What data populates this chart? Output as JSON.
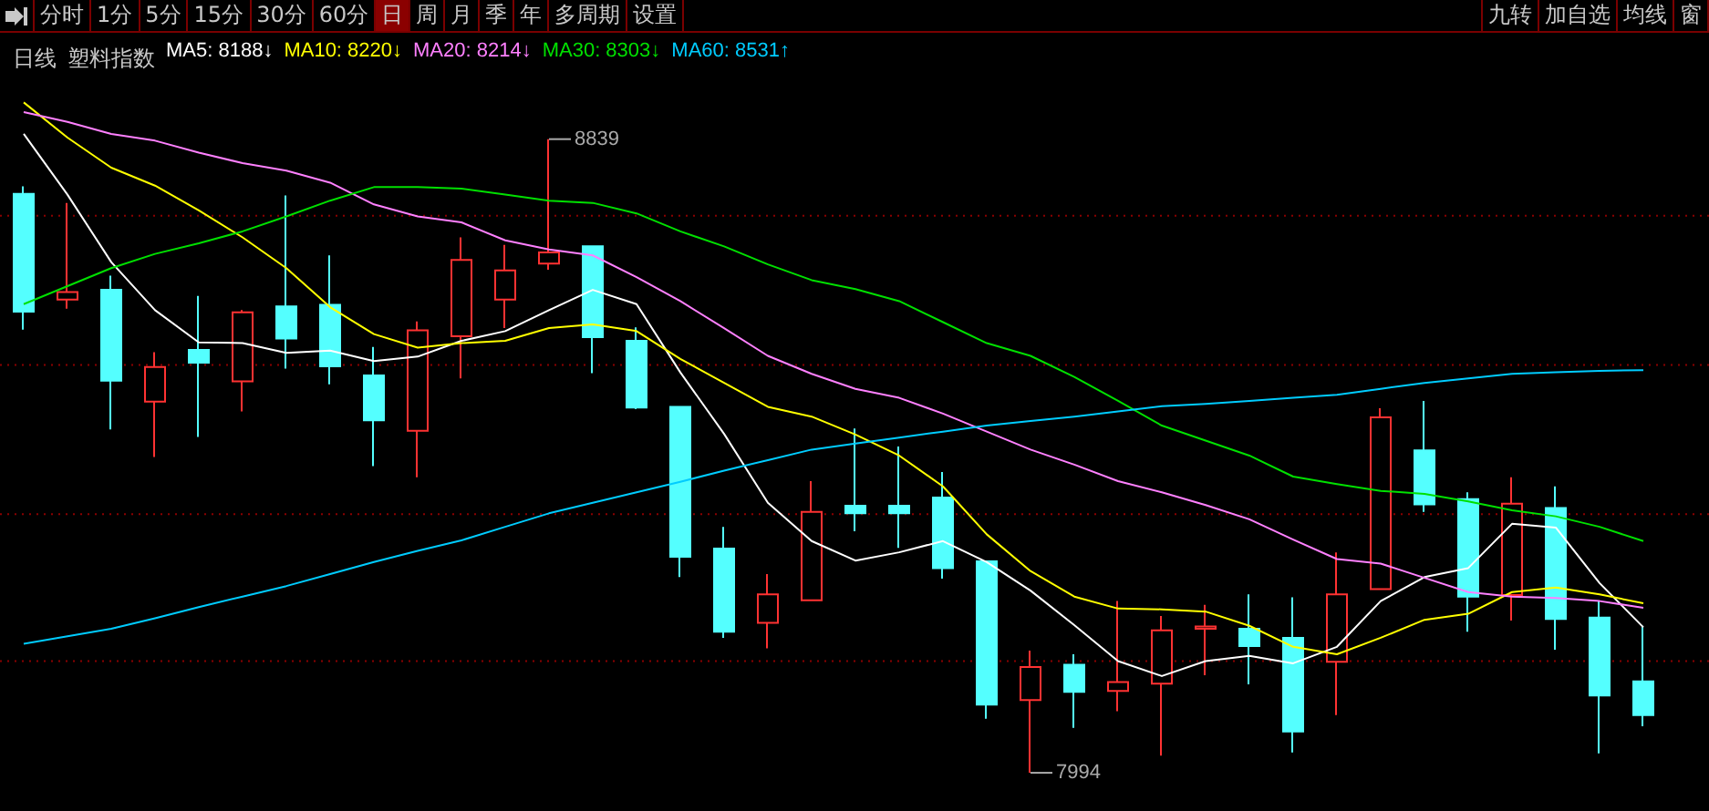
{
  "chart_data": {
    "type": "candlestick",
    "title": "日线",
    "subtitle": "塑料指数",
    "categories": [
      null,
      null,
      null,
      null,
      null,
      null,
      null,
      null,
      null,
      null,
      null,
      null,
      null,
      null,
      null,
      null,
      null,
      null,
      null,
      null,
      null,
      null,
      null,
      null,
      null,
      null,
      null,
      null,
      null,
      null,
      null,
      null,
      null,
      null,
      null,
      null,
      null,
      null
    ],
    "ohlc": [
      [
        8766,
        8776,
        8585,
        8609
      ],
      [
        8625,
        8754,
        8613,
        8635
      ],
      [
        8638,
        8657,
        8452,
        8517
      ],
      [
        8489,
        8555,
        8415,
        8535
      ],
      [
        8558,
        8630,
        8442,
        8541
      ],
      [
        8516,
        8611,
        8476,
        8608
      ],
      [
        8616,
        8764,
        8533,
        8573
      ],
      [
        8618,
        8684,
        8512,
        8536
      ],
      [
        8524,
        8562,
        8403,
        8464
      ],
      [
        8450,
        8596,
        8388,
        8584
      ],
      [
        8576,
        8708,
        8520,
        8678
      ],
      [
        8625,
        8698,
        8587,
        8664
      ],
      [
        8673,
        8839,
        8665,
        8688
      ],
      [
        8696,
        8696,
        8527,
        8575
      ],
      [
        8570,
        8588,
        8479,
        8481
      ],
      [
        8482,
        8482,
        8255,
        8282
      ],
      [
        8293,
        8322,
        8174,
        8182
      ],
      [
        8194,
        8259,
        8160,
        8232
      ],
      [
        8224,
        8383,
        8224,
        8342
      ],
      [
        8350,
        8453,
        8316,
        8340
      ],
      [
        8350,
        8429,
        8294,
        8340
      ],
      [
        8361,
        8395,
        8253,
        8267
      ],
      [
        8276,
        8276,
        8066,
        8085
      ],
      [
        8091,
        8157,
        7994,
        8135
      ],
      [
        8138,
        8152,
        8054,
        8102
      ],
      [
        8103,
        8223,
        8076,
        8115
      ],
      [
        8113,
        8203,
        8017,
        8184
      ],
      [
        8186,
        8218,
        8124,
        8189
      ],
      [
        8186,
        8232,
        8112,
        8163
      ],
      [
        8174,
        8228,
        8021,
        8049
      ],
      [
        8142,
        8288,
        8071,
        8232
      ],
      [
        8239,
        8480,
        8239,
        8468
      ],
      [
        8424,
        8490,
        8342,
        8352
      ],
      [
        8359,
        8368,
        8182,
        8229
      ],
      [
        8231,
        8388,
        8197,
        8353
      ],
      [
        8347,
        8376,
        8158,
        8199
      ],
      [
        8201,
        8223,
        8020,
        8097
      ],
      [
        8116,
        8190,
        8056,
        8071
      ]
    ],
    "colors": [
      "#54ffff",
      "#ff3232",
      "#54ffff",
      "#ff3232",
      "#54ffff",
      "#ff3232",
      "#54ffff",
      "#54ffff",
      "#54ffff",
      "#ff3232",
      "#ff3232",
      "#ff3232",
      "#ff3232",
      "#54ffff",
      "#54ffff",
      "#54ffff",
      "#54ffff",
      "#ff3232",
      "#ff3232",
      "#54ffff",
      "#54ffff",
      "#54ffff",
      "#54ffff",
      "#ff3232",
      "#54ffff",
      "#ff3232",
      "#ff3232",
      "#ff3232",
      "#54ffff",
      "#54ffff",
      "#ff3232",
      "#ff3232",
      "#54ffff",
      "#54ffff",
      "#ff3232",
      "#54ffff",
      "#54ffff",
      "#54ffff"
    ],
    "series": [
      {
        "type": "line",
        "name": "MA5: 8188↓",
        "color": "#ffffff",
        "values": [
          8846,
          8765,
          8675,
          8611,
          8568,
          8567,
          8554,
          8557,
          8543,
          8549,
          8570,
          8583,
          8611,
          8638,
          8619,
          8528,
          8446,
          8354,
          8303,
          8277,
          8288,
          8303,
          8275,
          8237,
          8191,
          8143,
          8123,
          8143,
          8150,
          8140,
          8162,
          8223,
          8255,
          8267,
          8326,
          8321,
          8247,
          8188
        ]
      },
      {
        "type": "line",
        "name": "MA10: 8220↓",
        "color": "#ffff00",
        "values": [
          8888,
          8841,
          8801,
          8777,
          8744,
          8708,
          8667,
          8615,
          8579,
          8561,
          8567,
          8570,
          8587,
          8592,
          8583,
          8546,
          8514,
          8482,
          8469,
          8445,
          8417,
          8376,
          8312,
          8263,
          8229,
          8213,
          8212,
          8209,
          8190,
          8162,
          8152,
          8174,
          8198,
          8206,
          8235,
          8241,
          8232,
          8220
        ]
      },
      {
        "type": "line",
        "name": "MA20: 8214↓",
        "color": "#ff80ff",
        "values": [
          8875,
          8862,
          8846,
          8837,
          8821,
          8807,
          8797,
          8781,
          8752,
          8736,
          8728,
          8704,
          8692,
          8684,
          8655,
          8623,
          8587,
          8550,
          8526,
          8506,
          8494,
          8473,
          8449,
          8425,
          8405,
          8383,
          8368,
          8351,
          8332,
          8305,
          8279,
          8273,
          8254,
          8235,
          8229,
          8227,
          8223,
          8214
        ]
      },
      {
        "type": "line",
        "name": "MA30: 8303↓",
        "color": "#00e000",
        "values": [
          8619,
          8643,
          8667,
          8686,
          8700,
          8716,
          8736,
          8757,
          8775,
          8775,
          8773,
          8765,
          8757,
          8754,
          8740,
          8716,
          8696,
          8672,
          8651,
          8639,
          8623,
          8595,
          8567,
          8550,
          8522,
          8490,
          8457,
          8437,
          8417,
          8389,
          8379,
          8370,
          8366,
          8356,
          8344,
          8336,
          8322,
          8303
        ]
      },
      {
        "type": "line",
        "name": "MA60: 8531↑",
        "color": "#00ccff",
        "values": [
          8166,
          8176,
          8186,
          8200,
          8215,
          8229,
          8243,
          8259,
          8275,
          8290,
          8304,
          8322,
          8340,
          8354,
          8368,
          8382,
          8397,
          8411,
          8425,
          8433,
          8441,
          8449,
          8457,
          8463,
          8469,
          8476,
          8483,
          8486,
          8490,
          8494,
          8498,
          8506,
          8514,
          8520,
          8526,
          8528,
          8530,
          8531
        ]
      }
    ],
    "yticks": [
      {
        "value": 8737,
        "label": null
      },
      {
        "value": 8538,
        "label": null
      },
      {
        "value": 8339,
        "label": null
      },
      {
        "value": 8143,
        "label": null
      }
    ],
    "grid": "y",
    "legend": "top left",
    "tick_labels": false,
    "marker": "none",
    "line_style": "solid",
    "annotations": [
      "分时",
      "1分",
      "5分",
      "15分",
      "30分",
      "60分",
      "日",
      "周",
      "月",
      "季",
      "年",
      "多周期",
      "设置",
      "九转",
      "加自选",
      "均线",
      "窗",
      "8839",
      "7994"
    ]
  }
}
